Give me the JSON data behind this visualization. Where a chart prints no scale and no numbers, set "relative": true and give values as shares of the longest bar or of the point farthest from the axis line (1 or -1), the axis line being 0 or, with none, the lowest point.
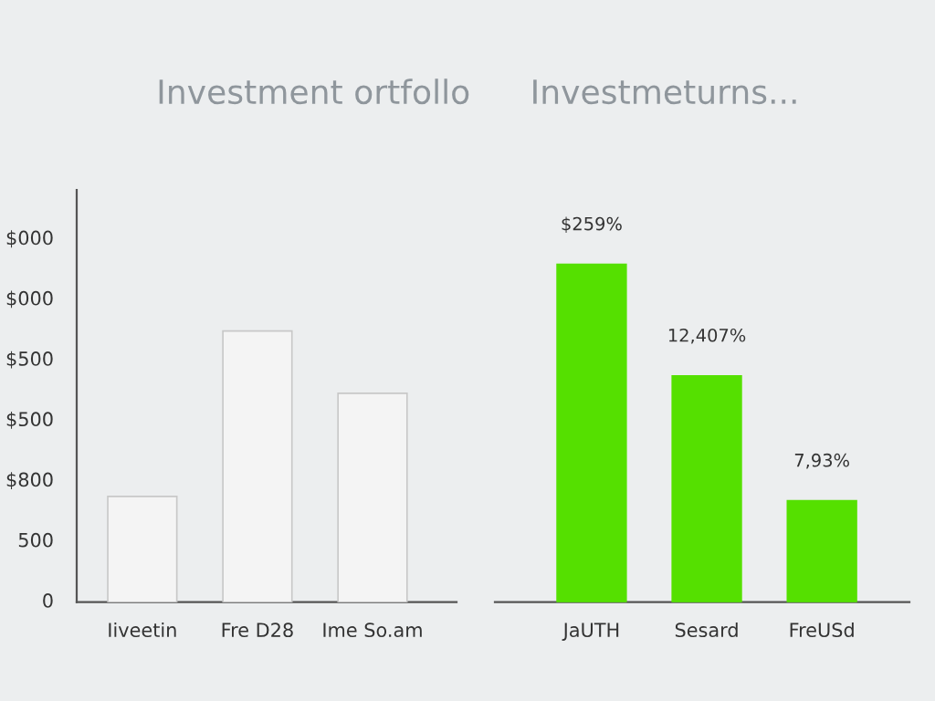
{
  "chart_data": [
    {
      "type": "bar",
      "title": "Investment ortfollo",
      "categories": [
        "Iiveetin",
        "Fre D28",
        "Ime So.am"
      ],
      "values": [
        0.39,
        1,
        0.77
      ],
      "color": "#f4f4f4",
      "relative": true,
      "annotations": [
        "0",
        "500",
        "$800",
        "$500",
        "$500",
        "$000",
        "$000"
      ]
    },
    {
      "type": "bar",
      "title": "Investmeturns...",
      "categories": [
        "JaUTH",
        "Sesard",
        "FreUSd"
      ],
      "values": [
        1,
        0.67,
        0.3
      ],
      "color": "#55e000",
      "relative": true,
      "tick_labels": "x",
      "annotations": [
        {
          "text": "$259%",
          "x": "JaUTH",
          "y": 1
        },
        {
          "text": "12,407%",
          "x": "Sesard",
          "y": 0.67
        },
        {
          "text": "7,93%",
          "x": "FreUSd",
          "y": 0.3
        }
      ]
    }
  ]
}
